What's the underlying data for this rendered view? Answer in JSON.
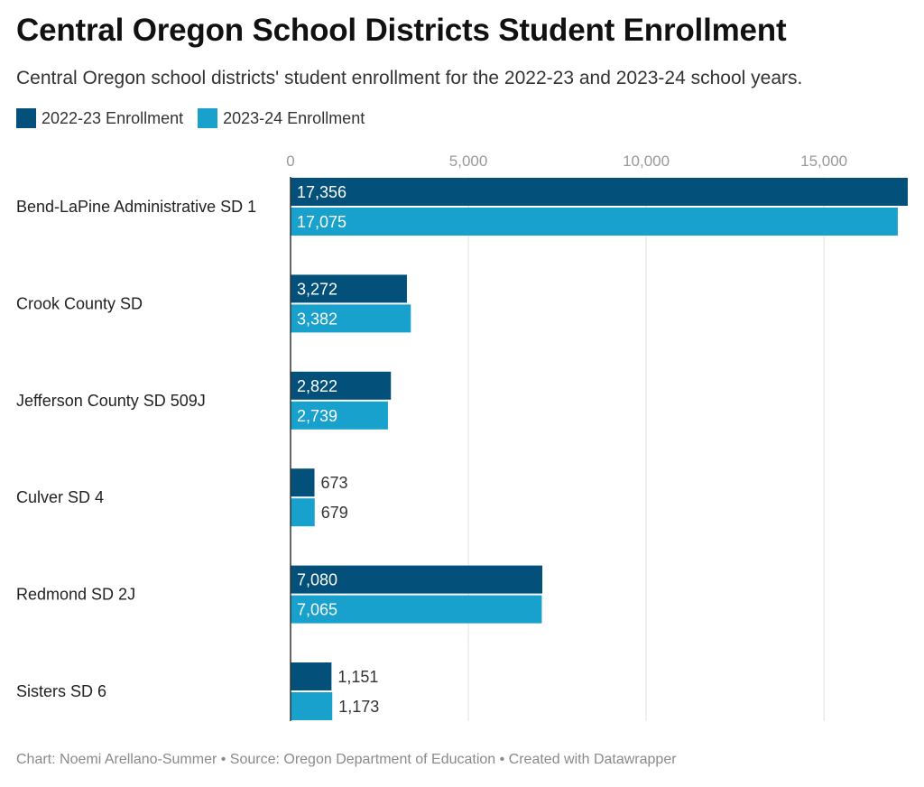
{
  "header": {
    "title": "Central Oregon School Districts Student Enrollment",
    "subtitle": "Central Oregon school districts' student enrollment for the 2022-23 and 2023-24 school years."
  },
  "footer": {
    "text": "Chart: Noemi Arellano-Summer • Source: Oregon Department of Education • Created with Datawrapper"
  },
  "colors": {
    "series_2022": "#03507a",
    "series_2023": "#18a1cd",
    "grid": "#e2e2e2",
    "axis": "#333333",
    "label_inside": "#ffffff",
    "label_outside": "#333333",
    "tick": "#999999"
  },
  "chart_data": {
    "type": "bar",
    "orientation": "horizontal",
    "categories": [
      "Bend-LaPine Administrative SD 1",
      "Crook County SD",
      "Jefferson County SD 509J",
      "Culver SD 4",
      "Redmond SD 2J",
      "Sisters SD 6"
    ],
    "series": [
      {
        "name": "2022-23 Enrollment",
        "values": [
          17356,
          3272,
          2822,
          673,
          7080,
          1151
        ]
      },
      {
        "name": "2023-24 Enrollment",
        "values": [
          17075,
          3382,
          2739,
          679,
          7065,
          1173
        ]
      }
    ],
    "data_labels": [
      [
        "17,356",
        "3,272",
        "2,822",
        "673",
        "7,080",
        "1,151"
      ],
      [
        "17,075",
        "3,382",
        "2,739",
        "679",
        "7,065",
        "1,173"
      ]
    ],
    "x_ticks": [
      0,
      5000,
      10000,
      15000
    ],
    "x_tick_labels": [
      "0",
      "5,000",
      "10,000",
      "15,000"
    ],
    "xlim": [
      0,
      17356
    ],
    "grid": true,
    "legend_position": "top-left"
  }
}
